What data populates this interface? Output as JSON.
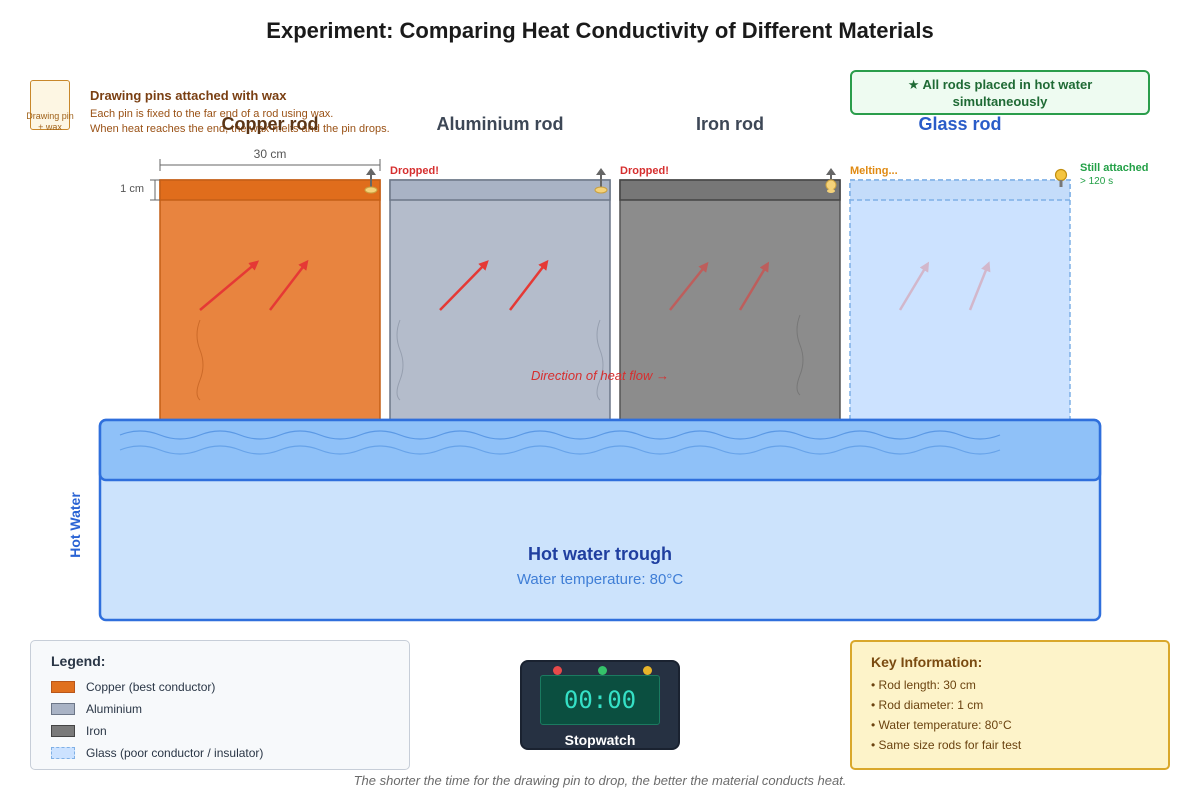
{
  "title": "Experiment: Comparing Heat Conductivity of Different Materials",
  "pin_info": {
    "icon_label": "Drawing pin\n+ wax",
    "heading": "Drawing pins attached with wax",
    "line1": "Each pin is fixed to the far end of a rod using wax.",
    "line2": "When heat reaches the end, the wax melts and the pin drops."
  },
  "banner": "★ All rods placed in hot water simultaneously",
  "dimensions": {
    "length": "30 cm",
    "diameter": "1 cm"
  },
  "rods": [
    {
      "name": "Copper rod",
      "status": "",
      "color": "#e8823f",
      "title_color": "#5b3516"
    },
    {
      "name": "Aluminium rod",
      "status": "Dropped!",
      "color": "#b4bccb",
      "title_color": "#3d4756"
    },
    {
      "name": "Iron rod",
      "status": "Dropped!",
      "color": "#8c8c8c",
      "title_color": "#3d4756"
    },
    {
      "name": "Glass rod",
      "status": "Melting...",
      "color": "#cce2ff",
      "title_color": "#2a5cc8"
    }
  ],
  "status_colors": {
    "dropped": "#d62f2f",
    "melting": "#e08a12"
  },
  "glass_note": {
    "title": "Still attached",
    "time": "> 120 s"
  },
  "heat_flow_label": "Direction of heat flow →",
  "trough": {
    "side_label": "Hot Water",
    "title": "Hot water trough",
    "temperature": "Water temperature: 80°C"
  },
  "legend": {
    "title": "Legend:",
    "items": [
      {
        "label": "Copper (best conductor)",
        "color": "#e0701e"
      },
      {
        "label": "Aluminium",
        "color": "#a9b3c5"
      },
      {
        "label": "Iron",
        "color": "#7a7a7a"
      },
      {
        "label": "Glass (poor conductor / insulator)",
        "color": "#cce2ff"
      }
    ]
  },
  "stopwatch": {
    "display": "00:00",
    "label": "Stopwatch"
  },
  "key_info": {
    "title": "Key Information:",
    "items": [
      "• Rod length: 30 cm",
      "• Rod diameter: 1 cm",
      "• Water temperature: 80°C",
      "• Same size rods for fair test"
    ]
  },
  "footer": "The shorter the time for the drawing pin to drop, the better the material conducts heat."
}
